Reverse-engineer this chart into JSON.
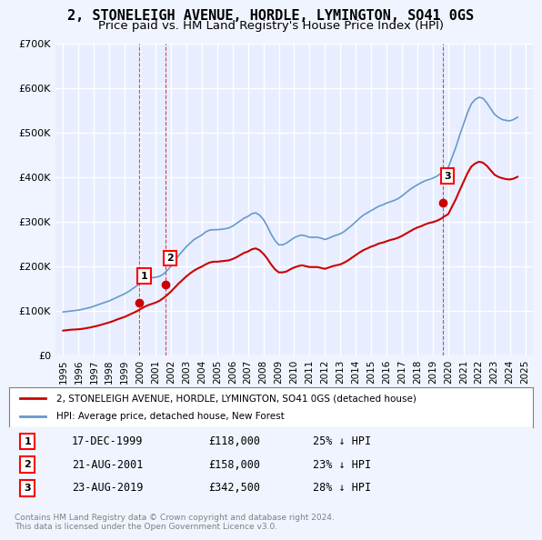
{
  "title": "2, STONELEIGH AVENUE, HORDLE, LYMINGTON, SO41 0GS",
  "subtitle": "Price paid vs. HM Land Registry's House Price Index (HPI)",
  "title_fontsize": 11,
  "subtitle_fontsize": 9.5,
  "ylim": [
    0,
    700000
  ],
  "yticks": [
    0,
    100000,
    200000,
    300000,
    400000,
    500000,
    600000,
    700000
  ],
  "ytick_labels": [
    "£0",
    "£100K",
    "£200K",
    "£300K",
    "£400K",
    "£500K",
    "£600K",
    "£700K"
  ],
  "background_color": "#f0f4ff",
  "plot_bg_color": "#e8eeff",
  "grid_color": "#ffffff",
  "red_line_color": "#cc0000",
  "blue_line_color": "#6699cc",
  "purchase_dates": [
    1999.96,
    2001.64,
    2019.64
  ],
  "purchase_prices": [
    118000,
    158000,
    342500
  ],
  "purchase_labels": [
    "1",
    "2",
    "3"
  ],
  "legend_label_red": "2, STONELEIGH AVENUE, HORDLE, LYMINGTON, SO41 0GS (detached house)",
  "legend_label_blue": "HPI: Average price, detached house, New Forest",
  "table_rows": [
    [
      "1",
      "17-DEC-1999",
      "£118,000",
      "25% ↓ HPI"
    ],
    [
      "2",
      "21-AUG-2001",
      "£158,000",
      "23% ↓ HPI"
    ],
    [
      "3",
      "23-AUG-2019",
      "£342,500",
      "28% ↓ HPI"
    ]
  ],
  "footer": "Contains HM Land Registry data © Crown copyright and database right 2024.\nThis data is licensed under the Open Government Licence v3.0.",
  "hpi_years": [
    1995.0,
    1995.25,
    1995.5,
    1995.75,
    1996.0,
    1996.25,
    1996.5,
    1996.75,
    1997.0,
    1997.25,
    1997.5,
    1997.75,
    1998.0,
    1998.25,
    1998.5,
    1998.75,
    1999.0,
    1999.25,
    1999.5,
    1999.75,
    2000.0,
    2000.25,
    2000.5,
    2000.75,
    2001.0,
    2001.25,
    2001.5,
    2001.75,
    2002.0,
    2002.25,
    2002.5,
    2002.75,
    2003.0,
    2003.25,
    2003.5,
    2003.75,
    2004.0,
    2004.25,
    2004.5,
    2004.75,
    2005.0,
    2005.25,
    2005.5,
    2005.75,
    2006.0,
    2006.25,
    2006.5,
    2006.75,
    2007.0,
    2007.25,
    2007.5,
    2007.75,
    2008.0,
    2008.25,
    2008.5,
    2008.75,
    2009.0,
    2009.25,
    2009.5,
    2009.75,
    2010.0,
    2010.25,
    2010.5,
    2010.75,
    2011.0,
    2011.25,
    2011.5,
    2011.75,
    2012.0,
    2012.25,
    2012.5,
    2012.75,
    2013.0,
    2013.25,
    2013.5,
    2013.75,
    2014.0,
    2014.25,
    2014.5,
    2014.75,
    2015.0,
    2015.25,
    2015.5,
    2015.75,
    2016.0,
    2016.25,
    2016.5,
    2016.75,
    2017.0,
    2017.25,
    2017.5,
    2017.75,
    2018.0,
    2018.25,
    2018.5,
    2018.75,
    2019.0,
    2019.25,
    2019.5,
    2019.75,
    2020.0,
    2020.25,
    2020.5,
    2020.75,
    2021.0,
    2021.25,
    2021.5,
    2021.75,
    2022.0,
    2022.25,
    2022.5,
    2022.75,
    2023.0,
    2023.25,
    2023.5,
    2023.75,
    2024.0,
    2024.25,
    2024.5
  ],
  "hpi_values": [
    97000,
    98000,
    99000,
    100000,
    101000,
    103000,
    105000,
    107000,
    110000,
    113000,
    116000,
    119000,
    122000,
    126000,
    130000,
    134000,
    138000,
    143000,
    149000,
    155000,
    161000,
    168000,
    172000,
    174000,
    175000,
    177000,
    182000,
    190000,
    200000,
    212000,
    224000,
    234000,
    244000,
    252000,
    260000,
    265000,
    270000,
    277000,
    281000,
    282000,
    282000,
    283000,
    284000,
    286000,
    290000,
    296000,
    302000,
    308000,
    312000,
    318000,
    320000,
    315000,
    305000,
    290000,
    272000,
    258000,
    248000,
    248000,
    252000,
    258000,
    264000,
    268000,
    270000,
    268000,
    265000,
    265000,
    265000,
    263000,
    260000,
    263000,
    267000,
    270000,
    273000,
    278000,
    285000,
    292000,
    300000,
    308000,
    315000,
    320000,
    325000,
    330000,
    335000,
    338000,
    342000,
    345000,
    348000,
    352000,
    358000,
    365000,
    372000,
    378000,
    383000,
    388000,
    392000,
    395000,
    398000,
    402000,
    408000,
    415000,
    422000,
    445000,
    468000,
    495000,
    520000,
    545000,
    565000,
    575000,
    580000,
    578000,
    568000,
    555000,
    542000,
    535000,
    530000,
    528000,
    527000,
    530000,
    535000
  ],
  "red_years": [
    1995.0,
    1995.25,
    1995.5,
    1995.75,
    1996.0,
    1996.25,
    1996.5,
    1996.75,
    1997.0,
    1997.25,
    1997.5,
    1997.75,
    1998.0,
    1998.25,
    1998.5,
    1998.75,
    1999.0,
    1999.25,
    1999.5,
    1999.75,
    2000.0,
    2000.25,
    2000.5,
    2000.75,
    2001.0,
    2001.25,
    2001.5,
    2001.75,
    2002.0,
    2002.25,
    2002.5,
    2002.75,
    2003.0,
    2003.25,
    2003.5,
    2003.75,
    2004.0,
    2004.25,
    2004.5,
    2004.75,
    2005.0,
    2005.25,
    2005.5,
    2005.75,
    2006.0,
    2006.25,
    2006.5,
    2006.75,
    2007.0,
    2007.25,
    2007.5,
    2007.75,
    2008.0,
    2008.25,
    2008.5,
    2008.75,
    2009.0,
    2009.25,
    2009.5,
    2009.75,
    2010.0,
    2010.25,
    2010.5,
    2010.75,
    2011.0,
    2011.25,
    2011.5,
    2011.75,
    2012.0,
    2012.25,
    2012.5,
    2012.75,
    2013.0,
    2013.25,
    2013.5,
    2013.75,
    2014.0,
    2014.25,
    2014.5,
    2014.75,
    2015.0,
    2015.25,
    2015.5,
    2015.75,
    2016.0,
    2016.25,
    2016.5,
    2016.75,
    2017.0,
    2017.25,
    2017.5,
    2017.75,
    2018.0,
    2018.25,
    2018.5,
    2018.75,
    2019.0,
    2019.25,
    2019.5,
    2019.75,
    2020.0,
    2020.25,
    2020.5,
    2020.75,
    2021.0,
    2021.25,
    2021.5,
    2021.75,
    2022.0,
    2022.25,
    2022.5,
    2022.75,
    2023.0,
    2023.25,
    2023.5,
    2023.75,
    2024.0,
    2024.25,
    2024.5
  ],
  "red_values": [
    55000,
    56000,
    57000,
    57500,
    58000,
    59000,
    60500,
    62000,
    64000,
    66000,
    68500,
    71000,
    73500,
    76500,
    80000,
    83000,
    86000,
    90000,
    94000,
    98000,
    103000,
    108000,
    112000,
    115000,
    118000,
    122000,
    128000,
    135000,
    143000,
    152000,
    161000,
    169000,
    177000,
    184000,
    190000,
    195000,
    199000,
    204000,
    208000,
    210000,
    210000,
    211000,
    212000,
    213000,
    216000,
    220000,
    225000,
    230000,
    233000,
    238000,
    240000,
    236000,
    228000,
    217000,
    204000,
    193000,
    186000,
    186000,
    188000,
    193000,
    197000,
    200000,
    202000,
    200000,
    198000,
    198000,
    198000,
    196000,
    194000,
    197000,
    200000,
    202000,
    204000,
    208000,
    213000,
    219000,
    225000,
    231000,
    236000,
    240000,
    244000,
    247000,
    251000,
    253000,
    256000,
    259000,
    261000,
    264000,
    268000,
    273000,
    278000,
    283000,
    287000,
    290000,
    294000,
    297000,
    299000,
    302000,
    306000,
    312000,
    317000,
    334000,
    351000,
    371000,
    390000,
    409000,
    424000,
    431000,
    435000,
    433000,
    426000,
    416000,
    406000,
    401000,
    398000,
    396000,
    395000,
    397000,
    401000
  ],
  "xlim": [
    1994.5,
    2025.5
  ],
  "xticks": [
    1995,
    1996,
    1997,
    1998,
    1999,
    2000,
    2001,
    2002,
    2003,
    2004,
    2005,
    2006,
    2007,
    2008,
    2009,
    2010,
    2011,
    2012,
    2013,
    2014,
    2015,
    2016,
    2017,
    2018,
    2019,
    2020,
    2021,
    2022,
    2023,
    2024,
    2025
  ]
}
